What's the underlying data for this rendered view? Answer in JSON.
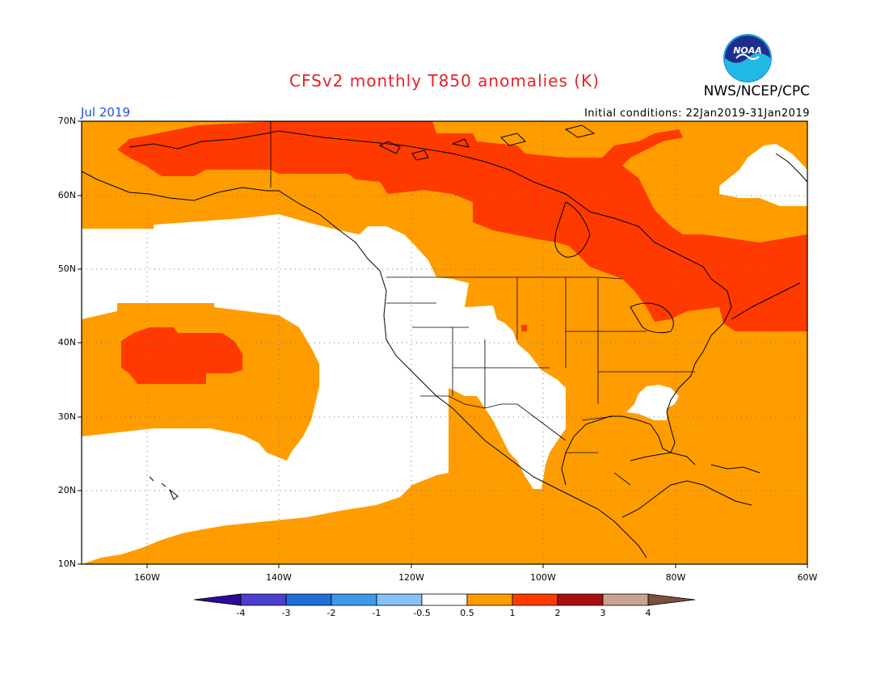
{
  "title": "CFSv2 monthly T850 anomalies (K)",
  "agency": "NWS/NCEP/CPC",
  "logo_text": "NOAA",
  "valid_month": "Jul 2019",
  "initial_conditions": "Initial conditions: 22Jan2019-31Jan2019",
  "lat_labels": [
    "70N",
    "60N",
    "50N",
    "40N",
    "30N",
    "20N",
    "10N"
  ],
  "lon_labels": [
    "160W",
    "140W",
    "120W",
    "100W",
    "80W",
    "60W"
  ],
  "colorbar": {
    "labels": [
      "-4",
      "-3",
      "-2",
      "-1",
      "-0.5",
      "0.5",
      "1",
      "2",
      "3",
      "4"
    ],
    "colors": [
      "#2b0a9c",
      "#4a3fd1",
      "#1e6fd8",
      "#3d9ae8",
      "#86c2f5",
      "#ffffff",
      "#ff9d00",
      "#ff3a00",
      "#a80f0f",
      "#c9a293",
      "#7a5040"
    ]
  },
  "palette": {
    "orange": "#ff9d00",
    "red": "#ff3a00",
    "white": "#ffffff"
  }
}
